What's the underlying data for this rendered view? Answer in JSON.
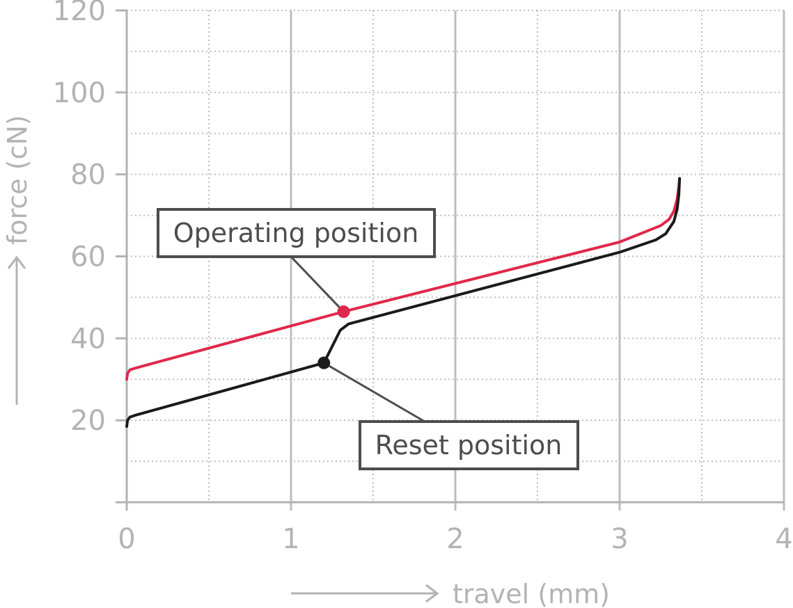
{
  "chart_data": {
    "type": "line",
    "xlabel": "travel (mm)",
    "ylabel": "force (cN)",
    "xlim": [
      0,
      4
    ],
    "ylim": [
      0,
      120
    ],
    "x_ticks": [
      "0",
      "1",
      "2",
      "3",
      "4"
    ],
    "y_ticks": [
      "20",
      "40",
      "60",
      "80",
      "100",
      "120"
    ],
    "grid": true,
    "colors": {
      "operating": "#e0284a",
      "reset": "#1a1a1a",
      "grid": "#bdbdbd",
      "axis": "#b3b3b3",
      "callout": "#4d4d4d"
    },
    "series": [
      {
        "key": "operating",
        "x": [
          0,
          0.005,
          0.02,
          0.05,
          1.32,
          3.0,
          3.25,
          3.3,
          3.33,
          3.35,
          3.36,
          3.365
        ],
        "y": [
          30,
          31.5,
          32.3,
          32.7,
          46.5,
          63.5,
          67.5,
          69,
          71,
          74,
          77,
          79
        ]
      },
      {
        "key": "reset",
        "x": [
          0,
          0.005,
          0.02,
          0.05,
          1.2,
          1.3,
          1.35,
          3.0,
          3.22,
          3.28,
          3.33,
          3.35,
          3.36,
          3.365
        ],
        "y": [
          18.5,
          20.0,
          20.8,
          21.2,
          34,
          42,
          43.5,
          61,
          64,
          65.5,
          68.5,
          71.5,
          75,
          79
        ]
      }
    ],
    "annotations": [
      {
        "key": "operating",
        "text": "Operating position",
        "x": 1.32,
        "y": 46.5
      },
      {
        "key": "reset",
        "text": "Reset position",
        "x": 1.2,
        "y": 34
      }
    ]
  }
}
